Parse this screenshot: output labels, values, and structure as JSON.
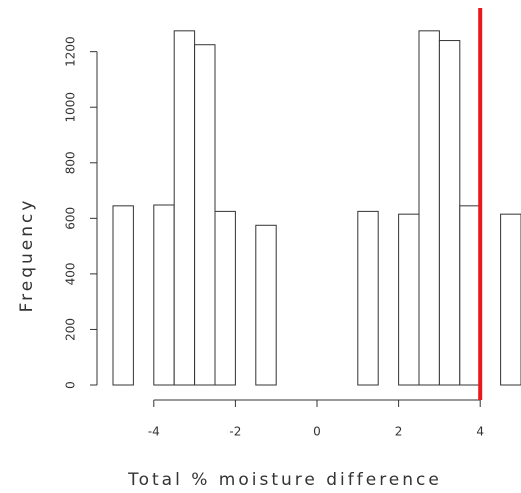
{
  "chart_data": {
    "type": "histogram",
    "xlabel": "Total % moisture difference",
    "ylabel": "Frequency",
    "bins": [
      -5,
      -4.5,
      -4,
      -3.5,
      -3,
      -2.5,
      -2,
      -1.5,
      -1,
      -0.5,
      0,
      0.5,
      1,
      1.5,
      2,
      2.5,
      3,
      3.5,
      4,
      4.5,
      5
    ],
    "values": [
      645,
      0,
      648,
      1275,
      1225,
      625,
      0,
      575,
      0,
      0,
      0,
      0,
      625,
      0,
      615,
      1275,
      1240,
      645,
      0,
      615
    ],
    "color": "#ffffff",
    "xlim": [
      -5,
      5
    ],
    "ylim": [
      0,
      1350
    ],
    "xticks": [
      -4,
      -2,
      0,
      2,
      4
    ],
    "yticks": [
      0,
      200,
      400,
      600,
      800,
      1000,
      1200
    ],
    "vline": 4,
    "vline_color": "#e8191b",
    "grid": false
  }
}
